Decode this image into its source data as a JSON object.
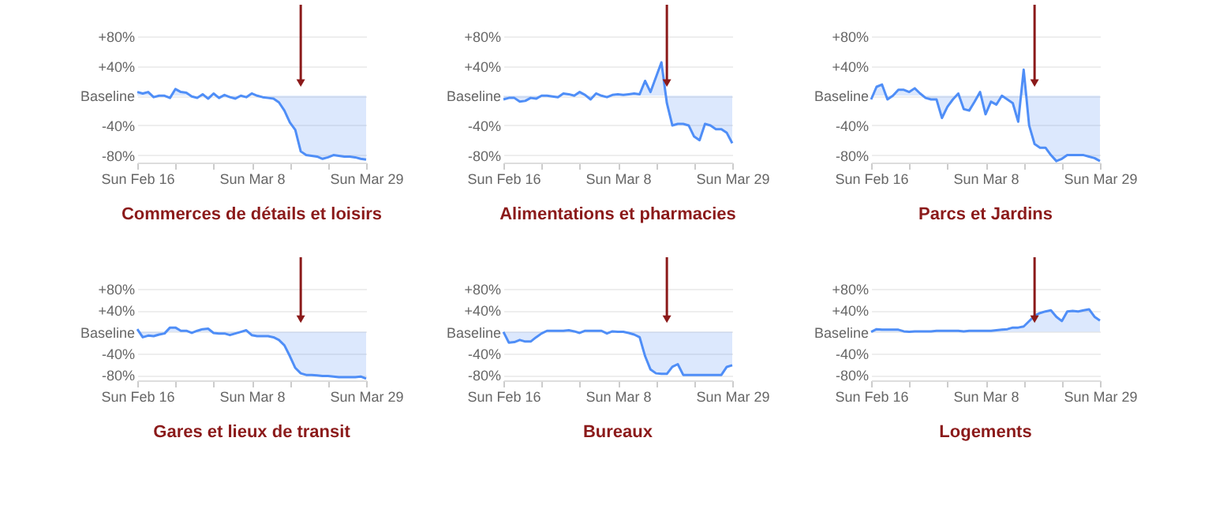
{
  "chart_data": [
    {
      "type": "area",
      "title": "Commerces de détails et loisirs",
      "x": [
        "--02-16",
        "--02-17",
        "--02-18",
        "--02-19",
        "--02-20",
        "--02-21",
        "--02-22",
        "--02-23",
        "--02-24",
        "--02-25",
        "--02-26",
        "--02-27",
        "--02-28",
        "--02-29",
        "--03-01",
        "--03-02",
        "--03-03",
        "--03-04",
        "--03-05",
        "--03-06",
        "--03-07",
        "--03-08",
        "--03-09",
        "--03-10",
        "--03-11",
        "--03-12",
        "--03-13",
        "--03-14",
        "--03-15",
        "--03-16",
        "--03-17",
        "--03-18",
        "--03-19",
        "--03-20",
        "--03-21",
        "--03-22",
        "--03-23",
        "--03-24",
        "--03-25",
        "--03-26",
        "--03-27",
        "--03-28",
        "--03-29"
      ],
      "series": [
        {
          "color": "#4f8ef7",
          "values": [
            5,
            3,
            5,
            -2,
            0,
            0,
            -3,
            9,
            5,
            4,
            -1,
            -3,
            2,
            -4,
            3,
            -3,
            1,
            -2,
            -4,
            0,
            -2,
            3,
            0,
            -2,
            -3,
            -4,
            -9,
            -20,
            -36,
            -46,
            -75,
            -80,
            -81,
            -82,
            -85,
            -83,
            -80,
            -81,
            -82,
            -82,
            -83,
            -85,
            -86
          ]
        }
      ],
      "xlim": [
        "--02-16",
        "--03-29"
      ],
      "xticks": [
        {
          "value": "--02-16",
          "label": "Sun Feb 16"
        },
        {
          "value": "--02-23",
          "label": null
        },
        {
          "value": "--03-01",
          "label": null
        },
        {
          "value": "--03-08",
          "label": "Sun Mar 8"
        },
        {
          "value": "--03-15",
          "label": null
        },
        {
          "value": "--03-22",
          "label": null
        },
        {
          "value": "--03-29",
          "label": "Sun Mar 29"
        }
      ],
      "ylim": [
        -90,
        80
      ],
      "yticks": [
        {
          "value": -80,
          "label": "-80%"
        },
        {
          "value": -40,
          "label": "-40%"
        },
        {
          "value": 0,
          "label": "Baseline"
        },
        {
          "value": 40,
          "label": "+40%"
        },
        {
          "value": 80,
          "label": "+80%"
        }
      ],
      "grid": "y",
      "ref_lines": [
        {
          "axis": "x",
          "value": "--03-17",
          "color": "#8b1a1a"
        }
      ]
    },
    {
      "type": "area",
      "title": "Alimentations et pharmacies",
      "x": [
        "--02-16",
        "--02-17",
        "--02-18",
        "--02-19",
        "--02-20",
        "--02-21",
        "--02-22",
        "--02-23",
        "--02-24",
        "--02-25",
        "--02-26",
        "--02-27",
        "--02-28",
        "--02-29",
        "--03-01",
        "--03-02",
        "--03-03",
        "--03-04",
        "--03-05",
        "--03-06",
        "--03-07",
        "--03-08",
        "--03-09",
        "--03-10",
        "--03-11",
        "--03-12",
        "--03-13",
        "--03-14",
        "--03-15",
        "--03-16",
        "--03-17",
        "--03-18",
        "--03-19",
        "--03-20",
        "--03-21",
        "--03-22",
        "--03-23",
        "--03-24",
        "--03-25",
        "--03-26",
        "--03-27",
        "--03-28",
        "--03-29"
      ],
      "series": [
        {
          "color": "#4f8ef7",
          "values": [
            -5,
            -3,
            -3,
            -8,
            -7,
            -3,
            -4,
            0,
            0,
            -1,
            -2,
            3,
            2,
            0,
            5,
            1,
            -5,
            3,
            0,
            -2,
            1,
            2,
            1,
            2,
            3,
            2,
            20,
            5,
            25,
            45,
            -10,
            -40,
            -38,
            -38,
            -40,
            -55,
            -60,
            -38,
            -40,
            -45,
            -45,
            -50,
            -64
          ]
        }
      ],
      "xlim": [
        "--02-16",
        "--03-29"
      ],
      "xticks": [
        {
          "value": "--02-16",
          "label": "Sun Feb 16"
        },
        {
          "value": "--02-23",
          "label": null
        },
        {
          "value": "--03-01",
          "label": null
        },
        {
          "value": "--03-08",
          "label": "Sun Mar 8"
        },
        {
          "value": "--03-15",
          "label": null
        },
        {
          "value": "--03-22",
          "label": null
        },
        {
          "value": "--03-29",
          "label": "Sun Mar 29"
        }
      ],
      "ylim": [
        -90,
        80
      ],
      "yticks": [
        {
          "value": -80,
          "label": "-80%"
        },
        {
          "value": -40,
          "label": "-40%"
        },
        {
          "value": 0,
          "label": "Baseline"
        },
        {
          "value": 40,
          "label": "+40%"
        },
        {
          "value": 80,
          "label": "+80%"
        }
      ],
      "grid": "y",
      "ref_lines": [
        {
          "axis": "x",
          "value": "--03-17",
          "color": "#8b1a1a"
        }
      ]
    },
    {
      "type": "area",
      "title": "Parcs et Jardins",
      "x": [
        "--02-16",
        "--02-17",
        "--02-18",
        "--02-19",
        "--02-20",
        "--02-21",
        "--02-22",
        "--02-23",
        "--02-24",
        "--02-25",
        "--02-26",
        "--02-27",
        "--02-28",
        "--02-29",
        "--03-01",
        "--03-02",
        "--03-03",
        "--03-04",
        "--03-05",
        "--03-06",
        "--03-07",
        "--03-08",
        "--03-09",
        "--03-10",
        "--03-11",
        "--03-12",
        "--03-13",
        "--03-14",
        "--03-15",
        "--03-16",
        "--03-17",
        "--03-18",
        "--03-19",
        "--03-20",
        "--03-21",
        "--03-22",
        "--03-23",
        "--03-24",
        "--03-25",
        "--03-26",
        "--03-27",
        "--03-28",
        "--03-29"
      ],
      "series": [
        {
          "color": "#4f8ef7",
          "values": [
            -5,
            12,
            15,
            -5,
            0,
            8,
            8,
            5,
            10,
            3,
            -3,
            -5,
            -5,
            -30,
            -15,
            -5,
            3,
            -18,
            -20,
            -8,
            5,
            -25,
            -8,
            -12,
            0,
            -5,
            -10,
            -35,
            35,
            -40,
            -65,
            -70,
            -70,
            -80,
            -88,
            -85,
            -80,
            -80,
            -80,
            -80,
            -82,
            -84,
            -88
          ]
        }
      ],
      "xlim": [
        "--02-16",
        "--03-29"
      ],
      "xticks": [
        {
          "value": "--02-16",
          "label": "Sun Feb 16"
        },
        {
          "value": "--02-23",
          "label": null
        },
        {
          "value": "--03-01",
          "label": null
        },
        {
          "value": "--03-08",
          "label": "Sun Mar 8"
        },
        {
          "value": "--03-15",
          "label": null
        },
        {
          "value": "--03-22",
          "label": null
        },
        {
          "value": "--03-29",
          "label": "Sun Mar 29"
        }
      ],
      "ylim": [
        -90,
        80
      ],
      "yticks": [
        {
          "value": -80,
          "label": "-80%"
        },
        {
          "value": -40,
          "label": "-40%"
        },
        {
          "value": 0,
          "label": "Baseline"
        },
        {
          "value": 40,
          "label": "+40%"
        },
        {
          "value": 80,
          "label": "+80%"
        }
      ],
      "grid": "y",
      "ref_lines": [
        {
          "axis": "x",
          "value": "--03-17",
          "color": "#8b1a1a"
        }
      ]
    },
    {
      "type": "area",
      "title": "Gares et lieux de transit",
      "x": [
        "--02-16",
        "--02-17",
        "--02-18",
        "--02-19",
        "--02-20",
        "--02-21",
        "--02-22",
        "--02-23",
        "--02-24",
        "--02-25",
        "--02-26",
        "--02-27",
        "--02-28",
        "--02-29",
        "--03-01",
        "--03-02",
        "--03-03",
        "--03-04",
        "--03-05",
        "--03-06",
        "--03-07",
        "--03-08",
        "--03-09",
        "--03-10",
        "--03-11",
        "--03-12",
        "--03-13",
        "--03-14",
        "--03-15",
        "--03-16",
        "--03-17",
        "--03-18",
        "--03-19",
        "--03-20",
        "--03-21",
        "--03-22",
        "--03-23",
        "--03-24",
        "--03-25",
        "--03-26",
        "--03-27",
        "--03-28",
        "--03-29"
      ],
      "series": [
        {
          "color": "#4f8ef7",
          "values": [
            5,
            -10,
            -7,
            -8,
            -5,
            -3,
            8,
            8,
            2,
            2,
            -2,
            2,
            5,
            6,
            -2,
            -3,
            -3,
            -6,
            -3,
            0,
            3,
            -6,
            -8,
            -8,
            -8,
            -10,
            -15,
            -25,
            -45,
            -67,
            -77,
            -80,
            -80,
            -81,
            -82,
            -82,
            -83,
            -84,
            -84,
            -84,
            -84,
            -83,
            -87
          ]
        }
      ],
      "xlim": [
        "--02-16",
        "--03-29"
      ],
      "xticks": [
        {
          "value": "--02-16",
          "label": "Sun Feb 16"
        },
        {
          "value": "--02-23",
          "label": null
        },
        {
          "value": "--03-01",
          "label": null
        },
        {
          "value": "--03-08",
          "label": "Sun Mar 8"
        },
        {
          "value": "--03-15",
          "label": null
        },
        {
          "value": "--03-22",
          "label": null
        },
        {
          "value": "--03-29",
          "label": "Sun Mar 29"
        }
      ],
      "ylim": [
        -90,
        80
      ],
      "yticks": [
        {
          "value": -80,
          "label": "-80%"
        },
        {
          "value": -40,
          "label": "-40%"
        },
        {
          "value": 0,
          "label": "Baseline"
        },
        {
          "value": 40,
          "label": "+40%"
        },
        {
          "value": 80,
          "label": "+80%"
        }
      ],
      "grid": "y",
      "ref_lines": [
        {
          "axis": "x",
          "value": "--03-17",
          "color": "#8b1a1a"
        }
      ]
    },
    {
      "type": "area",
      "title": "Bureaux",
      "x": [
        "--02-16",
        "--02-17",
        "--02-18",
        "--02-19",
        "--02-20",
        "--02-21",
        "--02-22",
        "--02-23",
        "--02-24",
        "--02-25",
        "--02-26",
        "--02-27",
        "--02-28",
        "--02-29",
        "--03-01",
        "--03-02",
        "--03-03",
        "--03-04",
        "--03-05",
        "--03-06",
        "--03-07",
        "--03-08",
        "--03-09",
        "--03-10",
        "--03-11",
        "--03-12",
        "--03-13",
        "--03-14",
        "--03-15",
        "--03-16",
        "--03-17",
        "--03-18",
        "--03-19",
        "--03-20",
        "--03-21",
        "--03-22",
        "--03-23",
        "--03-24",
        "--03-25",
        "--03-26",
        "--03-27",
        "--03-28",
        "--03-29"
      ],
      "series": [
        {
          "color": "#4f8ef7",
          "values": [
            0,
            -20,
            -19,
            -15,
            -18,
            -18,
            -10,
            -3,
            2,
            2,
            2,
            2,
            3,
            1,
            -2,
            2,
            2,
            2,
            2,
            -3,
            1,
            0,
            0,
            -2,
            -5,
            -10,
            -45,
            -70,
            -77,
            -78,
            -78,
            -65,
            -60,
            -80,
            -80,
            -80,
            -80,
            -80,
            -80,
            -80,
            -80,
            -65,
            -62
          ]
        }
      ],
      "xlim": [
        "--02-16",
        "--03-29"
      ],
      "xticks": [
        {
          "value": "--02-16",
          "label": "Sun Feb 16"
        },
        {
          "value": "--02-23",
          "label": null
        },
        {
          "value": "--03-01",
          "label": null
        },
        {
          "value": "--03-08",
          "label": "Sun Mar 8"
        },
        {
          "value": "--03-15",
          "label": null
        },
        {
          "value": "--03-22",
          "label": null
        },
        {
          "value": "--03-29",
          "label": "Sun Mar 29"
        }
      ],
      "ylim": [
        -90,
        80
      ],
      "yticks": [
        {
          "value": -80,
          "label": "-80%"
        },
        {
          "value": -40,
          "label": "-40%"
        },
        {
          "value": 0,
          "label": "Baseline"
        },
        {
          "value": 40,
          "label": "+40%"
        },
        {
          "value": 80,
          "label": "+80%"
        }
      ],
      "grid": "y",
      "ref_lines": [
        {
          "axis": "x",
          "value": "--03-17",
          "color": "#8b1a1a"
        }
      ]
    },
    {
      "type": "area",
      "title": "Logements",
      "x": [
        "--02-16",
        "--02-17",
        "--02-18",
        "--02-19",
        "--02-20",
        "--02-21",
        "--02-22",
        "--02-23",
        "--02-24",
        "--02-25",
        "--02-26",
        "--02-27",
        "--02-28",
        "--02-29",
        "--03-01",
        "--03-02",
        "--03-03",
        "--03-04",
        "--03-05",
        "--03-06",
        "--03-07",
        "--03-08",
        "--03-09",
        "--03-10",
        "--03-11",
        "--03-12",
        "--03-13",
        "--03-14",
        "--03-15",
        "--03-16",
        "--03-17",
        "--03-18",
        "--03-19",
        "--03-20",
        "--03-21",
        "--03-22",
        "--03-23",
        "--03-24",
        "--03-25",
        "--03-26",
        "--03-27",
        "--03-28",
        "--03-29"
      ],
      "series": [
        {
          "color": "#4f8ef7",
          "values": [
            0,
            5,
            4,
            4,
            4,
            4,
            1,
            0,
            1,
            1,
            1,
            1,
            2,
            2,
            2,
            2,
            2,
            1,
            2,
            2,
            2,
            2,
            2,
            3,
            4,
            5,
            8,
            8,
            10,
            20,
            30,
            35,
            38,
            40,
            28,
            20,
            38,
            39,
            38,
            40,
            42,
            28,
            21
          ]
        }
      ],
      "xlim": [
        "--02-16",
        "--03-29"
      ],
      "xticks": [
        {
          "value": "--02-16",
          "label": "Sun Feb 16"
        },
        {
          "value": "--02-23",
          "label": null
        },
        {
          "value": "--03-01",
          "label": null
        },
        {
          "value": "--03-08",
          "label": "Sun Mar 8"
        },
        {
          "value": "--03-15",
          "label": null
        },
        {
          "value": "--03-22",
          "label": null
        },
        {
          "value": "--03-29",
          "label": "Sun Mar 29"
        }
      ],
      "ylim": [
        -90,
        80
      ],
      "yticks": [
        {
          "value": -80,
          "label": "-80%"
        },
        {
          "value": -40,
          "label": "-40%"
        },
        {
          "value": 0,
          "label": "Baseline"
        },
        {
          "value": 40,
          "label": "+40%"
        },
        {
          "value": 80,
          "label": "+80%"
        }
      ],
      "grid": "y",
      "ref_lines": [
        {
          "axis": "x",
          "value": "--03-17",
          "color": "#8b1a1a"
        }
      ]
    }
  ]
}
